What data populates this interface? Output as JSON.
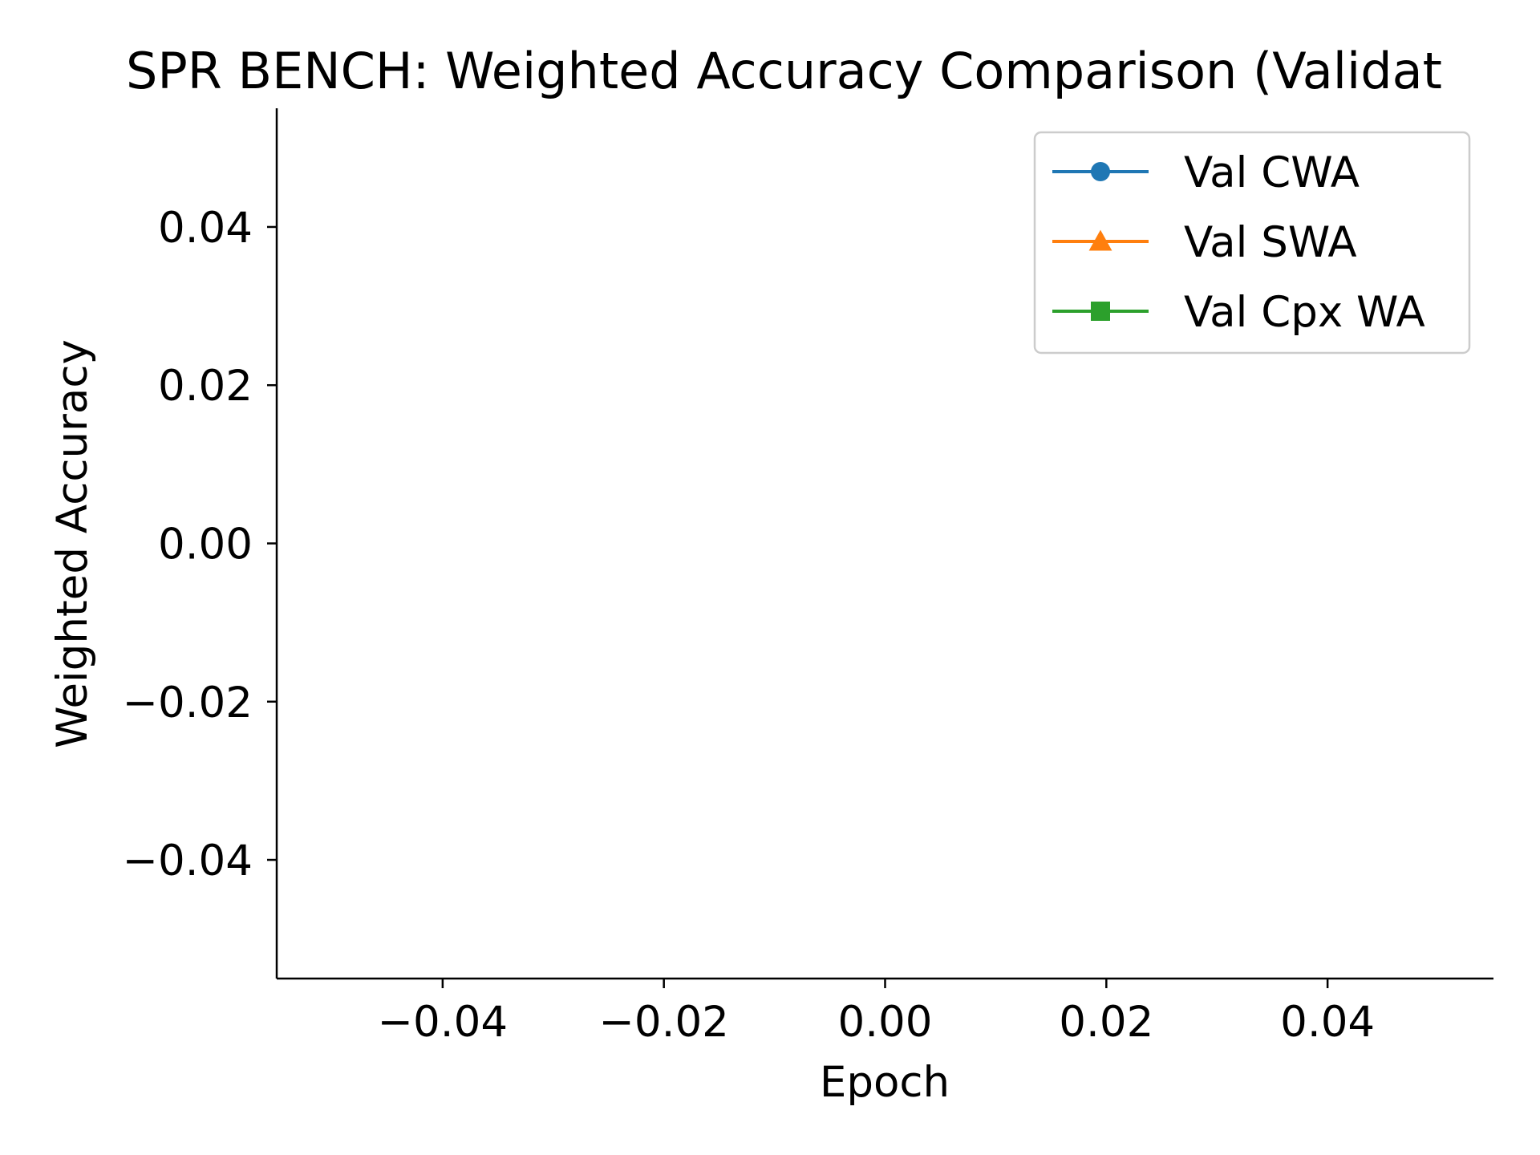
{
  "chart_data": {
    "type": "line",
    "title": "SPR BENCH: Weighted Accuracy Comparison (Validat",
    "xlabel": "Epoch",
    "ylabel": "Weighted Accuracy",
    "xlim": [
      -0.055,
      0.055
    ],
    "ylim": [
      -0.055,
      0.055
    ],
    "x_ticks": [
      -0.04,
      -0.02,
      0.0,
      0.02,
      0.04
    ],
    "x_tick_labels": [
      "−0.04",
      "−0.02",
      "0.00",
      "0.02",
      "0.04"
    ],
    "y_ticks": [
      -0.04,
      -0.02,
      0.0,
      0.02,
      0.04
    ],
    "y_tick_labels": [
      "−0.04",
      "−0.02",
      "0.00",
      "0.02",
      "0.04"
    ],
    "grid": false,
    "legend_position": "top-right",
    "series": [
      {
        "name": "Val CWA",
        "color": "#1f77b4",
        "marker": "circle",
        "x": [],
        "y": []
      },
      {
        "name": "Val SWA",
        "color": "#ff7f0e",
        "marker": "triangle",
        "x": [],
        "y": []
      },
      {
        "name": "Val Cpx WA",
        "color": "#2ca02c",
        "marker": "square",
        "x": [],
        "y": []
      }
    ]
  }
}
